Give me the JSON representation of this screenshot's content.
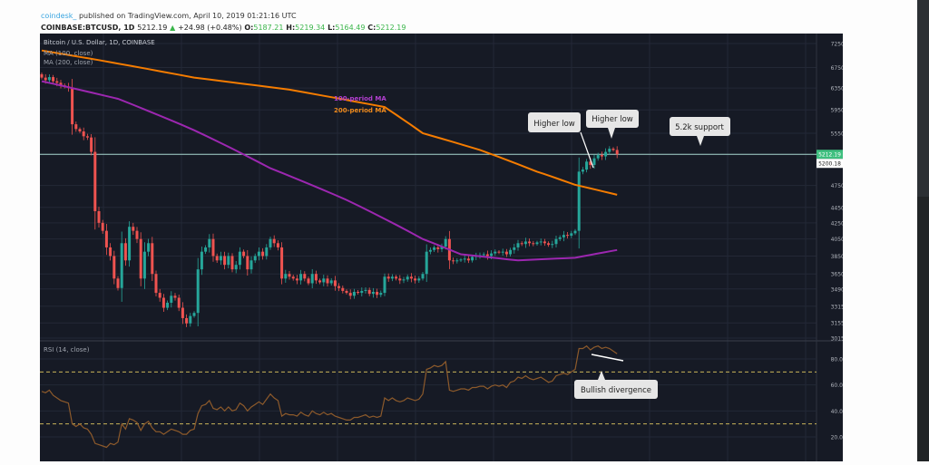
{
  "header": {
    "author": "coindesk_",
    "published": "published on TradingView.com, April 10, 2019 01:21:16 UTC",
    "symbol": "COINBASE:BTCUSD, 1D",
    "last": "5212.19",
    "change": "+24.98 (+0.48%)",
    "o_label": "O:",
    "o": "5187.21",
    "h_label": "H:",
    "h": "5219.34",
    "l_label": "L:",
    "l": "5164.49",
    "c_label": "C:",
    "c": "5212.19"
  },
  "legend": {
    "title": "Bitcoin / U.S. Dollar, 1D, COINBASE",
    "ma100": "MA (100, close)",
    "ma200": "MA (200, close)",
    "rsi": "RSI (14, close)"
  },
  "colors": {
    "background": "#161a25",
    "up": "#26a69a",
    "down": "#ef5350",
    "ma100": "#9c27b0",
    "ma200": "#f57c00",
    "support": "#a8d8d0",
    "rsi": "#8d5a2b",
    "rsi_band": "#c9b458"
  },
  "chart_data": [
    {
      "type": "candlestick",
      "title": "Bitcoin / U.S. Dollar, 1D, COINBASE",
      "scale": "log",
      "grid": true,
      "y_ticks": [
        "7250.00",
        "6750.00",
        "6350.00",
        "5950.00",
        "5550.00",
        "4750.00",
        "4450.00",
        "4250.00",
        "4050.00",
        "3850.00",
        "3650.00",
        "3490.00",
        "3315.00",
        "3155.00",
        "3015.00"
      ],
      "price_labels": {
        "last": "5212.19",
        "other": "5200.18"
      },
      "closes": [
        6550,
        6500,
        6560,
        6480,
        6450,
        6400,
        6380,
        6350,
        5700,
        5620,
        5580,
        5500,
        5480,
        5250,
        4400,
        4250,
        4150,
        3950,
        3850,
        3600,
        3500,
        4000,
        3800,
        4200,
        4150,
        4050,
        3600,
        3900,
        4000,
        3650,
        3450,
        3400,
        3300,
        3350,
        3420,
        3400,
        3300,
        3200,
        3150,
        3220,
        3250,
        3700,
        3900,
        3950,
        4050,
        3850,
        3800,
        3850,
        3750,
        3850,
        3700,
        3750,
        3900,
        3850,
        3700,
        3800,
        3850,
        3900,
        3850,
        3950,
        4050,
        4000,
        3950,
        3600,
        3650,
        3620,
        3600,
        3580,
        3650,
        3600,
        3550,
        3650,
        3580,
        3560,
        3600,
        3550,
        3580,
        3520,
        3500,
        3470,
        3450,
        3420,
        3460,
        3450,
        3470,
        3480,
        3440,
        3460,
        3430,
        3450,
        3620,
        3600,
        3620,
        3600,
        3580,
        3590,
        3620,
        3600,
        3580,
        3600,
        3650,
        3900,
        3920,
        3950,
        3930,
        3960,
        4050,
        3800,
        3790,
        3800,
        3810,
        3820,
        3800,
        3840,
        3850,
        3860,
        3870,
        3850,
        3880,
        3900,
        3890,
        3900,
        3870,
        3920,
        3950,
        4000,
        3990,
        4020,
        4000,
        3990,
        4010,
        4020,
        4000,
        3980,
        3990,
        4050,
        4070,
        4100,
        4090,
        4120,
        4150,
        4950,
        4980,
        5100,
        5050,
        5150,
        5200,
        5180,
        5250,
        5300,
        5280,
        5212
      ],
      "series": [
        {
          "name": "100-period MA",
          "points": [
            [
              0,
              6480
            ],
            [
              20,
              6150
            ],
            [
              40,
              5600
            ],
            [
              60,
              5000
            ],
            [
              80,
              4550
            ],
            [
              100,
              4050
            ],
            [
              110,
              3870
            ],
            [
              125,
              3800
            ],
            [
              140,
              3830
            ],
            [
              151,
              3920
            ]
          ]
        },
        {
          "name": "200-period MA",
          "points": [
            [
              0,
              7100
            ],
            [
              15,
              6900
            ],
            [
              40,
              6550
            ],
            [
              65,
              6320
            ],
            [
              90,
              6000
            ],
            [
              100,
              5550
            ],
            [
              115,
              5280
            ],
            [
              130,
              4950
            ],
            [
              140,
              4760
            ],
            [
              151,
              4620
            ]
          ]
        }
      ],
      "support_level": 5212.19,
      "annotations": [
        "100-period MA",
        "200-period MA",
        "Higher low",
        "Higher low",
        "5.2k support"
      ]
    },
    {
      "type": "line",
      "title": "RSI (14, close)",
      "ylim": [
        10,
        95
      ],
      "y_ticks": [
        "80.0000",
        "60.0000",
        "40.0000",
        "20.0000"
      ],
      "bands": [
        70,
        30
      ],
      "values": [
        55,
        54,
        56,
        52,
        50,
        48,
        47,
        46,
        30,
        28,
        30,
        27,
        26,
        22,
        15,
        14,
        13,
        12,
        15,
        14,
        16,
        30,
        26,
        34,
        33,
        31,
        25,
        30,
        32,
        27,
        24,
        24,
        22,
        24,
        26,
        25,
        24,
        22,
        22,
        25,
        26,
        38,
        44,
        45,
        48,
        42,
        41,
        43,
        40,
        43,
        40,
        41,
        46,
        44,
        40,
        43,
        45,
        47,
        45,
        49,
        53,
        50,
        48,
        36,
        38,
        37,
        37,
        36,
        39,
        37,
        36,
        40,
        38,
        37,
        39,
        37,
        38,
        36,
        35,
        34,
        33,
        33,
        35,
        35,
        36,
        37,
        35,
        36,
        35,
        36,
        50,
        48,
        50,
        48,
        47,
        48,
        50,
        49,
        48,
        49,
        53,
        72,
        73,
        75,
        74,
        75,
        78,
        56,
        55,
        56,
        57,
        57,
        56,
        58,
        58,
        59,
        59,
        57,
        59,
        60,
        59,
        60,
        58,
        62,
        63,
        66,
        65,
        67,
        65,
        64,
        65,
        66,
        64,
        62,
        63,
        67,
        68,
        69,
        68,
        70,
        72,
        88,
        88,
        90,
        87,
        89,
        90,
        88,
        89,
        88,
        86,
        84
      ],
      "annotations": [
        "Bullish divergence"
      ]
    }
  ],
  "callouts": {
    "higher_low_1": "Higher low",
    "higher_low_2": "Higher low",
    "support": "5.2k support",
    "divergence": "Bullish divergence",
    "ma100_label": "100-period MA",
    "ma200_label": "200-period MA"
  }
}
